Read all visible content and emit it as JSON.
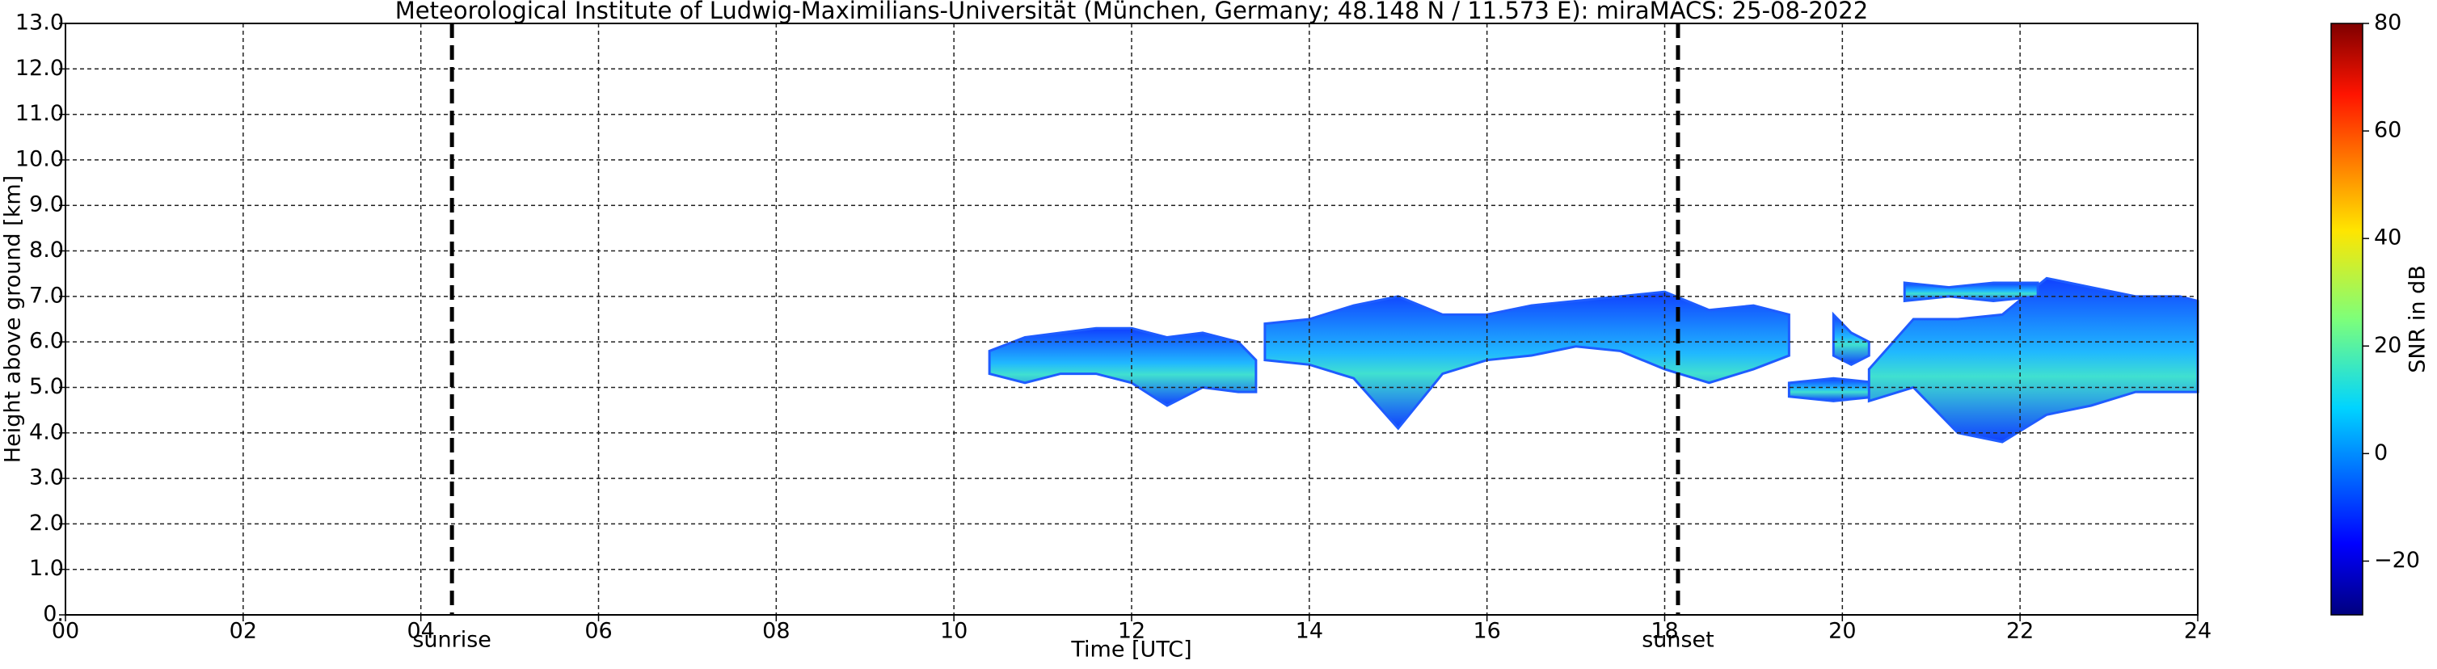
{
  "chart_data": {
    "type": "radar-layers",
    "title": "Meteorological Institute of Ludwig-Maximilians-Universität (München, Germany; 48.148 N / 11.573 E):    miraMACS: 25-08-2022",
    "x_label": "Time [UTC]",
    "y_label": "Height above ground [km]",
    "xlim": [
      0,
      24
    ],
    "xticks": [
      {
        "value": 0,
        "label": "00"
      },
      {
        "value": 2,
        "label": "02"
      },
      {
        "value": 4,
        "label": "04"
      },
      {
        "value": 6,
        "label": "06"
      },
      {
        "value": 8,
        "label": "08"
      },
      10,
      12,
      14,
      16,
      18,
      20,
      22,
      24
    ],
    "ylim": [
      0,
      13
    ],
    "yticks": [
      {
        "value": 0,
        "label": "0."
      },
      {
        "value": 1,
        "label": "1.0"
      },
      {
        "value": 2,
        "label": "2.0"
      },
      {
        "value": 3,
        "label": "3.0"
      },
      {
        "value": 4,
        "label": "4.0"
      },
      {
        "value": 5,
        "label": "5.0"
      },
      {
        "value": 6,
        "label": "6.0"
      },
      {
        "value": 7,
        "label": "7.0"
      },
      {
        "value": 8,
        "label": "8.0"
      },
      {
        "value": 9,
        "label": "9.0"
      },
      {
        "value": 10,
        "label": "10.0"
      },
      {
        "value": 11,
        "label": "11.0"
      },
      {
        "value": 12,
        "label": "12.0"
      },
      {
        "value": 13,
        "label": "13.0"
      }
    ],
    "grid": true,
    "color": "#1e5cff",
    "layers": [
      {
        "x": [
          10.4,
          10.8,
          11.2,
          11.6,
          12.0,
          12.4,
          12.8,
          13.2,
          13.4
        ],
        "top": [
          5.8,
          6.1,
          6.2,
          6.3,
          6.3,
          6.1,
          6.2,
          6.0,
          5.6
        ],
        "base": [
          5.3,
          5.1,
          5.3,
          5.3,
          5.1,
          4.6,
          5.0,
          4.9,
          4.9
        ]
      },
      {
        "x": [
          13.5,
          14.0,
          14.5,
          15.0,
          15.5,
          16.0,
          16.5,
          17.0,
          17.5,
          18.0,
          18.5,
          19.0,
          19.4
        ],
        "top": [
          6.4,
          6.5,
          6.8,
          7.0,
          6.6,
          6.6,
          6.8,
          6.9,
          7.0,
          7.1,
          6.7,
          6.8,
          6.6
        ],
        "base": [
          5.6,
          5.5,
          5.2,
          4.1,
          5.3,
          5.6,
          5.7,
          5.9,
          5.8,
          5.4,
          5.1,
          5.4,
          5.7
        ]
      },
      {
        "x": [
          19.9,
          20.1,
          20.3
        ],
        "top": [
          6.6,
          6.2,
          6.0
        ],
        "base": [
          5.7,
          5.5,
          5.7
        ]
      },
      {
        "x": [
          19.4,
          19.9,
          20.4
        ],
        "top": [
          5.1,
          5.2,
          5.1
        ],
        "base": [
          4.8,
          4.7,
          4.8
        ]
      },
      {
        "x": [
          20.3,
          20.8,
          21.3,
          21.8,
          22.3,
          22.8,
          23.3,
          23.8,
          24.0
        ],
        "top": [
          5.4,
          6.5,
          6.5,
          6.6,
          7.4,
          7.2,
          7.0,
          7.0,
          6.9
        ],
        "base": [
          4.7,
          5.0,
          4.0,
          3.8,
          4.4,
          4.6,
          4.9,
          4.9,
          4.9
        ]
      },
      {
        "x": [
          20.7,
          21.2,
          21.7,
          22.2
        ],
        "top": [
          7.3,
          7.2,
          7.3,
          7.3
        ],
        "base": [
          6.9,
          7.0,
          6.9,
          7.0
        ]
      }
    ],
    "events": [
      {
        "label": "sunrise",
        "x": 4.35
      },
      {
        "label": "sunset",
        "x": 18.15
      }
    ],
    "colorbar": {
      "label": "SNR in dB",
      "clim": [
        -30,
        80
      ],
      "ticks": [
        {
          "value": -20,
          "label": "−20"
        },
        0,
        20,
        40,
        60,
        80
      ]
    }
  }
}
